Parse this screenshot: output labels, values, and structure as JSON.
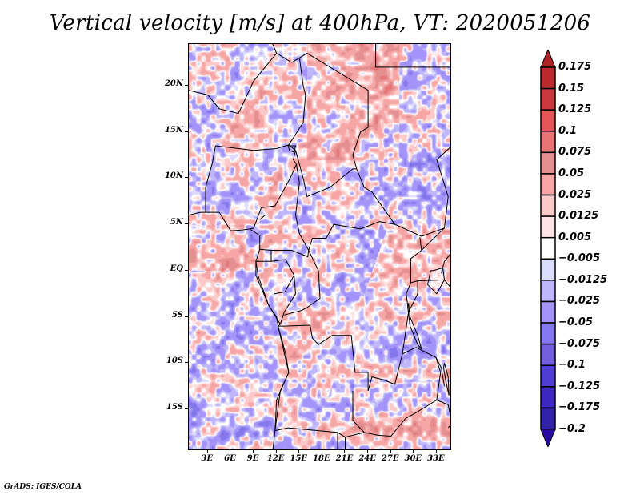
{
  "title": "Vertical velocity [m/s] at 400hPa, VT: 2020051206",
  "footer": "GrADS: IGES/COLA",
  "map": {
    "variable": "Vertical velocity",
    "units": "m/s",
    "level": "400hPa",
    "valid_time": "2020051206",
    "lat_range": [
      -19.5,
      24.5
    ],
    "lon_range": [
      0.5,
      35
    ],
    "y_ticks": [
      {
        "label": "20N",
        "value": 20
      },
      {
        "label": "15N",
        "value": 15
      },
      {
        "label": "10N",
        "value": 10
      },
      {
        "label": "5N",
        "value": 5
      },
      {
        "label": "EQ",
        "value": 0
      },
      {
        "label": "5S",
        "value": -5
      },
      {
        "label": "10S",
        "value": -10
      },
      {
        "label": "15S",
        "value": -15
      }
    ],
    "x_ticks": [
      {
        "label": "3E",
        "value": 3
      },
      {
        "label": "6E",
        "value": 6
      },
      {
        "label": "9E",
        "value": 9
      },
      {
        "label": "12E",
        "value": 12
      },
      {
        "label": "15E",
        "value": 15
      },
      {
        "label": "18E",
        "value": 18
      },
      {
        "label": "21E",
        "value": 21
      },
      {
        "label": "24E",
        "value": 24
      },
      {
        "label": "27E",
        "value": 27
      },
      {
        "label": "30E",
        "value": 30
      },
      {
        "label": "33E",
        "value": 33
      }
    ]
  },
  "colorbar": {
    "labels": [
      "0.175",
      "0.15",
      "0.125",
      "0.1",
      "0.075",
      "0.05",
      "0.025",
      "0.0125",
      "0.005",
      "−0.005",
      "−0.0125",
      "−0.025",
      "−0.05",
      "−0.075",
      "−0.1",
      "−0.125",
      "−0.175",
      "−0.2"
    ],
    "colors": [
      "#b12226",
      "#b82b2e",
      "#c83a3d",
      "#e2585a",
      "#e77576",
      "#e49091",
      "#f7a6a6",
      "#fcc9c9",
      "#ffe4e4",
      "#ffffff",
      "#dcdcfc",
      "#bfb6fb",
      "#a393fa",
      "#8578ec",
      "#735fd9",
      "#4f3ed1",
      "#3f28bf",
      "#3222a6",
      "#2a0aa2"
    ],
    "top_arrow_color": "#b12226",
    "bottom_arrow_color": "#2a0aa2"
  }
}
